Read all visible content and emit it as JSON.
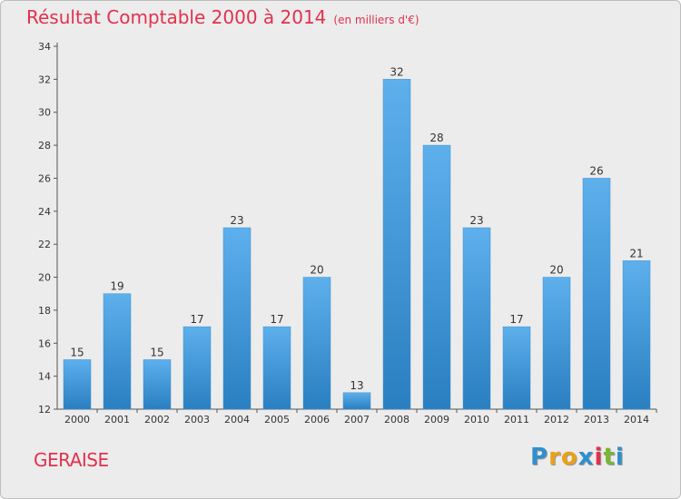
{
  "title": "Résultat Comptable 2000 à 2014",
  "subtitle": "(en milliers d'€)",
  "commune": "GERAISE",
  "logo": {
    "text": "Proxiti",
    "colors": [
      "#2f8fce",
      "#e8a21a",
      "#e8a21a",
      "#2f8fce",
      "#e2314d",
      "#7bb534",
      "#2f8fce"
    ]
  },
  "colors": {
    "bar_light": "#5db0ec",
    "bar_dark": "#2a7fc1",
    "title": "#e2314d",
    "axis": "#555555"
  },
  "chart_data": {
    "type": "bar",
    "title": "Résultat Comptable 2000 à 2014 (en milliers d'€)",
    "xlabel": "",
    "ylabel": "",
    "categories": [
      "2000",
      "2001",
      "2002",
      "2003",
      "2004",
      "2005",
      "2006",
      "2007",
      "2008",
      "2009",
      "2010",
      "2011",
      "2012",
      "2013",
      "2014"
    ],
    "values": [
      15,
      19,
      15,
      17,
      23,
      17,
      20,
      13,
      32,
      28,
      23,
      17,
      20,
      26,
      21
    ],
    "ylim": [
      12,
      34
    ],
    "yticks": [
      12,
      14,
      16,
      18,
      20,
      22,
      24,
      26,
      28,
      30,
      32,
      34
    ],
    "grid": false
  }
}
